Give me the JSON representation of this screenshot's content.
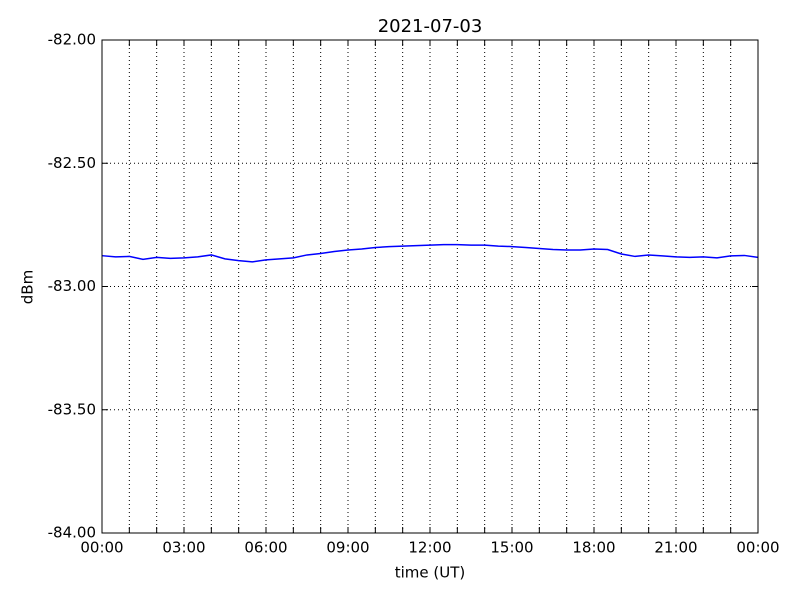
{
  "chart_data": {
    "type": "line",
    "title": "2021-07-03",
    "x_label": "time (UT)",
    "y_label": "dBm",
    "x": [
      0,
      0.5,
      1,
      1.5,
      2,
      2.5,
      3,
      3.5,
      4,
      4.5,
      5,
      5.5,
      6,
      6.5,
      7,
      7.5,
      8,
      8.5,
      9,
      9.5,
      10,
      10.5,
      11,
      11.5,
      12,
      12.5,
      13,
      13.5,
      14,
      14.5,
      15,
      15.5,
      16,
      16.5,
      17,
      17.5,
      18,
      18.5,
      19,
      19.5,
      20,
      20.5,
      21,
      21.5,
      22,
      22.5,
      23,
      23.5,
      24
    ],
    "series": [
      {
        "name": "dBm",
        "color": "#0000ff",
        "values": [
          -82.875,
          -82.88,
          -82.878,
          -82.89,
          -82.882,
          -82.886,
          -82.884,
          -82.88,
          -82.872,
          -82.888,
          -82.895,
          -82.9,
          -82.892,
          -82.888,
          -82.884,
          -82.872,
          -82.866,
          -82.858,
          -82.852,
          -82.848,
          -82.842,
          -82.838,
          -82.836,
          -82.834,
          -82.832,
          -82.83,
          -82.83,
          -82.832,
          -82.832,
          -82.836,
          -82.838,
          -82.842,
          -82.846,
          -82.85,
          -82.852,
          -82.852,
          -82.848,
          -82.85,
          -82.868,
          -82.878,
          -82.872,
          -82.876,
          -82.88,
          -82.882,
          -82.88,
          -82.884,
          -82.876,
          -82.874,
          -82.882
        ]
      }
    ],
    "xlim": [
      0,
      24
    ],
    "xticks": [
      {
        "value": 0,
        "label": "00:00"
      },
      {
        "value": 1,
        "label": null
      },
      {
        "value": 2,
        "label": null
      },
      {
        "value": 3,
        "label": "03:00"
      },
      {
        "value": 4,
        "label": null
      },
      {
        "value": 5,
        "label": null
      },
      {
        "value": 6,
        "label": "06:00"
      },
      {
        "value": 7,
        "label": null
      },
      {
        "value": 8,
        "label": null
      },
      {
        "value": 9,
        "label": "09:00"
      },
      {
        "value": 10,
        "label": null
      },
      {
        "value": 11,
        "label": null
      },
      {
        "value": 12,
        "label": "12:00"
      },
      {
        "value": 13,
        "label": null
      },
      {
        "value": 14,
        "label": null
      },
      {
        "value": 15,
        "label": "15:00"
      },
      {
        "value": 16,
        "label": null
      },
      {
        "value": 17,
        "label": null
      },
      {
        "value": 18,
        "label": "18:00"
      },
      {
        "value": 19,
        "label": null
      },
      {
        "value": 20,
        "label": null
      },
      {
        "value": 21,
        "label": "21:00"
      },
      {
        "value": 22,
        "label": null
      },
      {
        "value": 23,
        "label": null
      },
      {
        "value": 24,
        "label": "00:00"
      }
    ],
    "ylim": [
      -84,
      -82
    ],
    "yticks": [
      {
        "value": -84,
        "label": "-84.00"
      },
      {
        "value": -83.5,
        "label": "-83.50"
      },
      {
        "value": -83,
        "label": "-83.00"
      },
      {
        "value": -82.5,
        "label": "-82.50"
      },
      {
        "value": -82,
        "label": "-82.00"
      }
    ],
    "grid": true
  }
}
